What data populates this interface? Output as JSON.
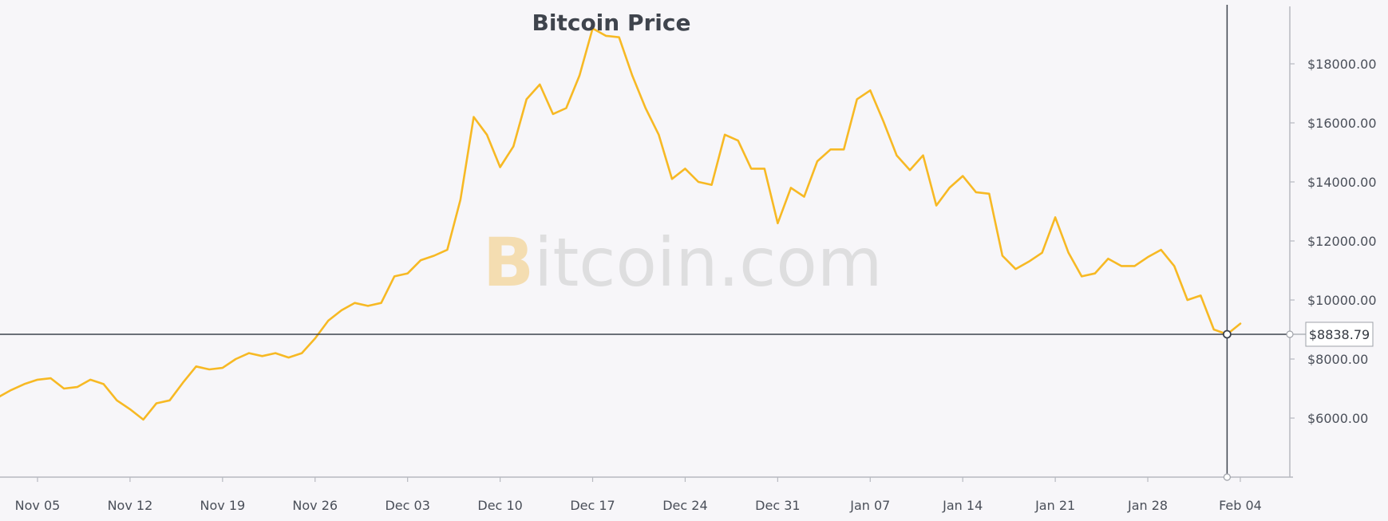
{
  "chart_data": {
    "type": "line",
    "title": "Bitcoin Price",
    "watermark": {
      "prefix": "B",
      "rest": "itcoin.com"
    },
    "colors": {
      "line": "#f7b924",
      "crosshair": "#3d434d",
      "axis": "#b7b9c0",
      "background": "#f7f6f9"
    },
    "ylim": [
      4000,
      20000
    ],
    "y_ticks": [
      6000,
      8000,
      10000,
      12000,
      14000,
      16000,
      18000
    ],
    "y_tick_labels": [
      "$6000.00",
      "$8000.00",
      "$10000.00",
      "$12000.00",
      "$14000.00",
      "$16000.00",
      "$18000.00"
    ],
    "x_start_date": "Nov 01",
    "x_ticks": [
      4,
      11,
      18,
      25,
      32,
      39,
      46,
      53,
      60,
      67,
      74,
      81,
      88,
      95
    ],
    "x_tick_labels": [
      "Nov 05",
      "Nov 12",
      "Nov 19",
      "Nov 26",
      "Dec 03",
      "Dec 10",
      "Dec 17",
      "Dec 24",
      "Dec 31",
      "Jan 07",
      "Jan 14",
      "Jan 21",
      "Jan 28",
      "Feb 04"
    ],
    "crosshair": {
      "x": 94,
      "y": 8838.79,
      "label": "$8838.79"
    },
    "series": [
      {
        "name": "Bitcoin Price",
        "x": [
          1,
          2,
          3,
          4,
          5,
          6,
          7,
          8,
          9,
          10,
          11,
          12,
          13,
          14,
          15,
          16,
          17,
          18,
          19,
          20,
          21,
          22,
          23,
          24,
          25,
          26,
          27,
          28,
          29,
          30,
          31,
          32,
          33,
          34,
          35,
          36,
          37,
          38,
          39,
          40,
          41,
          42,
          43,
          44,
          45,
          46,
          47,
          48,
          49,
          50,
          51,
          52,
          53,
          54,
          55,
          56,
          57,
          58,
          59,
          60,
          61,
          62,
          63,
          64,
          65,
          66,
          67,
          68,
          69,
          70,
          71,
          72,
          73,
          74,
          75,
          76,
          77,
          78,
          79,
          80,
          81,
          82,
          83,
          84,
          85,
          86,
          87,
          88,
          89,
          90,
          91,
          92,
          93,
          94,
          95
        ],
        "values": [
          6700,
          6950,
          7150,
          7300,
          7350,
          7000,
          7050,
          7300,
          7150,
          6600,
          6300,
          5950,
          6500,
          6600,
          7200,
          7750,
          7650,
          7700,
          8000,
          8200,
          8100,
          8200,
          8050,
          8200,
          8700,
          9300,
          9650,
          9900,
          9800,
          9900,
          10800,
          10900,
          11350,
          11500,
          11700,
          13400,
          16200,
          15600,
          14500,
          15200,
          16800,
          17300,
          16300,
          16500,
          17600,
          19200,
          18950,
          18900,
          17600,
          16500,
          15600,
          14100,
          14450,
          14000,
          13900,
          15600,
          15400,
          14450,
          14450,
          12600,
          13800,
          13500,
          14700,
          15100,
          15100,
          16800,
          17100,
          16050,
          14900,
          14400,
          14900,
          13200,
          13800,
          14200,
          13650,
          13600,
          11500,
          11050,
          11300,
          11600,
          12800,
          11600,
          10800,
          10900,
          11400,
          11150,
          11150,
          11450,
          11700,
          11150,
          10000,
          10150,
          9000,
          8838.79,
          9200
        ]
      }
    ]
  }
}
